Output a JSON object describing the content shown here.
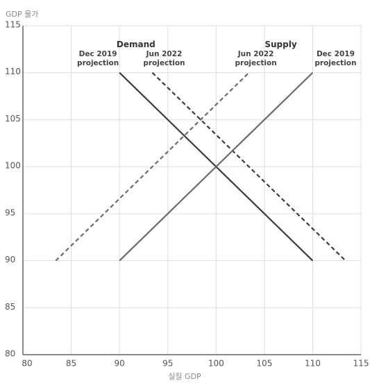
{
  "chart_data": {
    "type": "line",
    "y_label": "GDP 물가",
    "x_label": "실질 GDP",
    "xlim": [
      80,
      115
    ],
    "xticks": [
      80,
      85,
      90,
      95,
      100,
      105,
      110,
      115
    ],
    "ylim": [
      80,
      115
    ],
    "yticks": [
      80,
      85,
      90,
      95,
      100,
      105,
      110,
      115
    ],
    "grid": true,
    "groups": [
      {
        "name": "Demand",
        "series": [
          {
            "name": "Dec 2019 projection",
            "color": "#3a3a3a",
            "dashed": false,
            "x": [
              90,
              110
            ],
            "values": [
              110,
              90
            ]
          },
          {
            "name": "Jun 2022 projection",
            "color": "#3a3a3a",
            "dashed": true,
            "x": [
              93.4,
              113.4
            ],
            "values": [
              110,
              90
            ]
          }
        ]
      },
      {
        "name": "Supply",
        "series": [
          {
            "name": "Jun 2022 projection",
            "color": "#6b6b6b",
            "dashed": true,
            "x": [
              83.4,
              103.4
            ],
            "values": [
              90,
              110
            ]
          },
          {
            "name": "Dec 2019 projection",
            "color": "#6b6b6b",
            "dashed": false,
            "x": [
              90,
              110
            ],
            "values": [
              90,
              110
            ]
          }
        ]
      }
    ]
  }
}
